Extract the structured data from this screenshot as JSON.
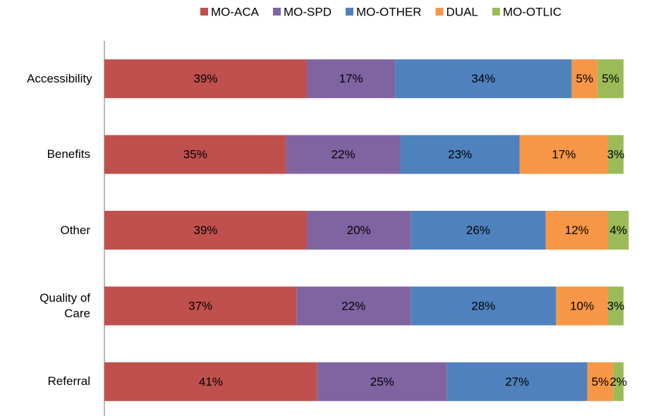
{
  "chart_data": {
    "type": "stacked_bar_horizontal",
    "categories": [
      "Accessibility",
      "Benefits",
      "Other",
      "Quality of Care",
      "Referral"
    ],
    "xlim": [
      0,
      100
    ],
    "legend": "top",
    "series": [
      {
        "name": "MO-ACA",
        "color": "#c0504d",
        "values": [
          39,
          35,
          39,
          37,
          41
        ],
        "value_labels": [
          "39%",
          "35%",
          "39%",
          "37%",
          "41%"
        ]
      },
      {
        "name": "MO-SPD",
        "color": "#8064a2",
        "values": [
          17,
          22,
          20,
          22,
          25
        ],
        "value_labels": [
          "17%",
          "22%",
          "20%",
          "22%",
          "25%"
        ]
      },
      {
        "name": "MO-OTHER",
        "color": "#4f81bd",
        "values": [
          34,
          23,
          26,
          28,
          27
        ],
        "value_labels": [
          "34%",
          "23%",
          "26%",
          "28%",
          "27%"
        ]
      },
      {
        "name": "DUAL",
        "color": "#f79646",
        "values": [
          5,
          17,
          12,
          10,
          5
        ],
        "value_labels": [
          "5%",
          "17%",
          "12%",
          "10%",
          "5%"
        ]
      },
      {
        "name": "MO-OTLIC",
        "color": "#9bbb59",
        "values": [
          5,
          3,
          4,
          3,
          2
        ],
        "value_labels": [
          "5%",
          "3%",
          "4%",
          "3%",
          "2%"
        ]
      }
    ]
  }
}
